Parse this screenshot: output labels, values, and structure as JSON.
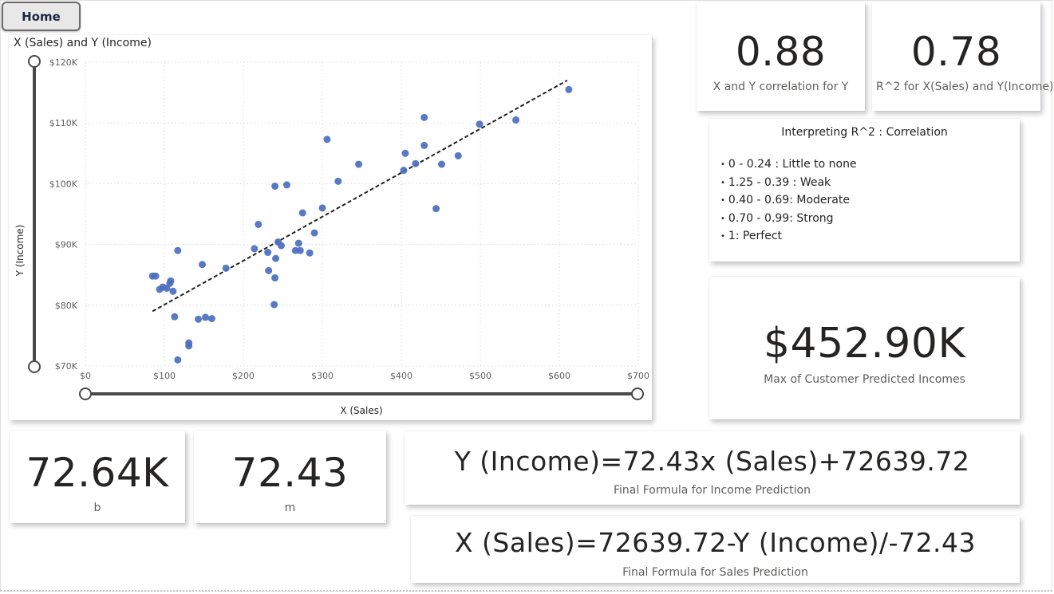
{
  "nav": {
    "home_label": "Home"
  },
  "chart": {
    "title": "X (Sales) and Y (Income)",
    "chart_data": {
      "type": "scatter",
      "title": "X (Sales) and Y (Income)",
      "xlabel": "X (Sales)",
      "ylabel": "Y (Income)",
      "xlim": [
        0,
        700
      ],
      "ylim": [
        70000,
        120000
      ],
      "x_ticks": [
        "$0",
        "$100",
        "$200",
        "$300",
        "$400",
        "$500",
        "$600",
        "$700"
      ],
      "y_ticks": [
        "$70K",
        "$80K",
        "$90K",
        "$100K",
        "$110K",
        "$120K"
      ],
      "grid": true,
      "trendline": {
        "style": "dashed",
        "x": [
          85,
          610
        ],
        "y": [
          79000,
          117000
        ]
      },
      "points": [
        {
          "x": 85,
          "y": 84800
        },
        {
          "x": 89,
          "y": 84800
        },
        {
          "x": 94,
          "y": 82600
        },
        {
          "x": 98,
          "y": 83000
        },
        {
          "x": 103,
          "y": 82800
        },
        {
          "x": 107,
          "y": 83600
        },
        {
          "x": 108,
          "y": 84000
        },
        {
          "x": 111,
          "y": 82300
        },
        {
          "x": 113,
          "y": 78100
        },
        {
          "x": 117,
          "y": 89000
        },
        {
          "x": 117,
          "y": 71000
        },
        {
          "x": 131,
          "y": 73300
        },
        {
          "x": 131,
          "y": 73800
        },
        {
          "x": 143,
          "y": 77700
        },
        {
          "x": 148,
          "y": 86700
        },
        {
          "x": 152,
          "y": 78000
        },
        {
          "x": 160,
          "y": 77800
        },
        {
          "x": 178,
          "y": 86100
        },
        {
          "x": 214,
          "y": 89300
        },
        {
          "x": 219,
          "y": 93300
        },
        {
          "x": 231,
          "y": 88700
        },
        {
          "x": 232,
          "y": 85700
        },
        {
          "x": 240,
          "y": 99600
        },
        {
          "x": 239,
          "y": 80100
        },
        {
          "x": 240,
          "y": 84500
        },
        {
          "x": 241,
          "y": 87700
        },
        {
          "x": 244,
          "y": 90400
        },
        {
          "x": 248,
          "y": 89800
        },
        {
          "x": 255,
          "y": 99800
        },
        {
          "x": 266,
          "y": 89000
        },
        {
          "x": 270,
          "y": 90200
        },
        {
          "x": 272,
          "y": 89000
        },
        {
          "x": 275,
          "y": 95200
        },
        {
          "x": 284,
          "y": 88600
        },
        {
          "x": 290,
          "y": 91900
        },
        {
          "x": 300,
          "y": 96000
        },
        {
          "x": 306,
          "y": 107300
        },
        {
          "x": 320,
          "y": 100400
        },
        {
          "x": 346,
          "y": 103200
        },
        {
          "x": 403,
          "y": 102200
        },
        {
          "x": 405,
          "y": 105000
        },
        {
          "x": 418,
          "y": 103300
        },
        {
          "x": 429,
          "y": 110900
        },
        {
          "x": 429,
          "y": 106300
        },
        {
          "x": 444,
          "y": 95900
        },
        {
          "x": 451,
          "y": 103200
        },
        {
          "x": 472,
          "y": 104600
        },
        {
          "x": 499,
          "y": 109800
        },
        {
          "x": 545,
          "y": 110500
        },
        {
          "x": 612,
          "y": 115500
        }
      ]
    }
  },
  "kpis": {
    "correlation": {
      "value": "0.88",
      "label": "X and Y correlation for Y"
    },
    "r2": {
      "value": "0.78",
      "label": "R^2 for X(Sales) and Y(Income)"
    },
    "max_pred": {
      "value": "$452.90K",
      "label": "Max of Customer Predicted Incomes"
    },
    "b": {
      "value": "72.64K",
      "label": "b"
    },
    "m": {
      "value": "72.43",
      "label": "m"
    },
    "income_formula": {
      "value": "Y (Income)=72.43x (Sales)+72639.72",
      "label": "Final Formula for Income Prediction"
    },
    "sales_formula": {
      "value": "X (Sales)=72639.72-Y (Income)/-72.43",
      "label": "Final Formula for Sales Prediction"
    }
  },
  "interpretation": {
    "title": "Interpreting R^2 : Correlation",
    "items": [
      "0 - 0.24 : Little to none",
      "1.25 - 0.39 : Weak",
      "0.40 - 0.69: Moderate",
      "0.70 - 0.99: Strong",
      "1: Perfect"
    ]
  },
  "colors": {
    "point": "#4a6ebf",
    "grid": "#d9d9d9",
    "axis_slider": "#4a4a4a",
    "text": "#252423",
    "label": "#605e5c"
  }
}
